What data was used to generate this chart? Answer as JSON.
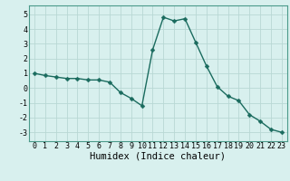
{
  "x": [
    0,
    1,
    2,
    3,
    4,
    5,
    6,
    7,
    8,
    9,
    10,
    11,
    12,
    13,
    14,
    15,
    16,
    17,
    18,
    19,
    20,
    21,
    22,
    23
  ],
  "y": [
    1.0,
    0.85,
    0.75,
    0.65,
    0.65,
    0.55,
    0.55,
    0.4,
    -0.3,
    -0.7,
    -1.2,
    2.6,
    4.8,
    4.55,
    4.7,
    3.1,
    1.5,
    0.1,
    -0.55,
    -0.85,
    -1.8,
    -2.25,
    -2.8,
    -3.0
  ],
  "line_color": "#1a6b5e",
  "marker": "D",
  "marker_size": 2.5,
  "bg_color": "#d8f0ee",
  "grid_color": "#b8d8d4",
  "xlabel": "Humidex (Indice chaleur)",
  "xlim": [
    -0.5,
    23.5
  ],
  "ylim": [
    -3.6,
    5.6
  ],
  "xticks": [
    0,
    1,
    2,
    3,
    4,
    5,
    6,
    7,
    8,
    9,
    10,
    11,
    12,
    13,
    14,
    15,
    16,
    17,
    18,
    19,
    20,
    21,
    22,
    23
  ],
  "yticks": [
    -3,
    -2,
    -1,
    0,
    1,
    2,
    3,
    4,
    5
  ],
  "tick_fontsize": 6.0,
  "xlabel_fontsize": 7.5,
  "linewidth": 1.0
}
